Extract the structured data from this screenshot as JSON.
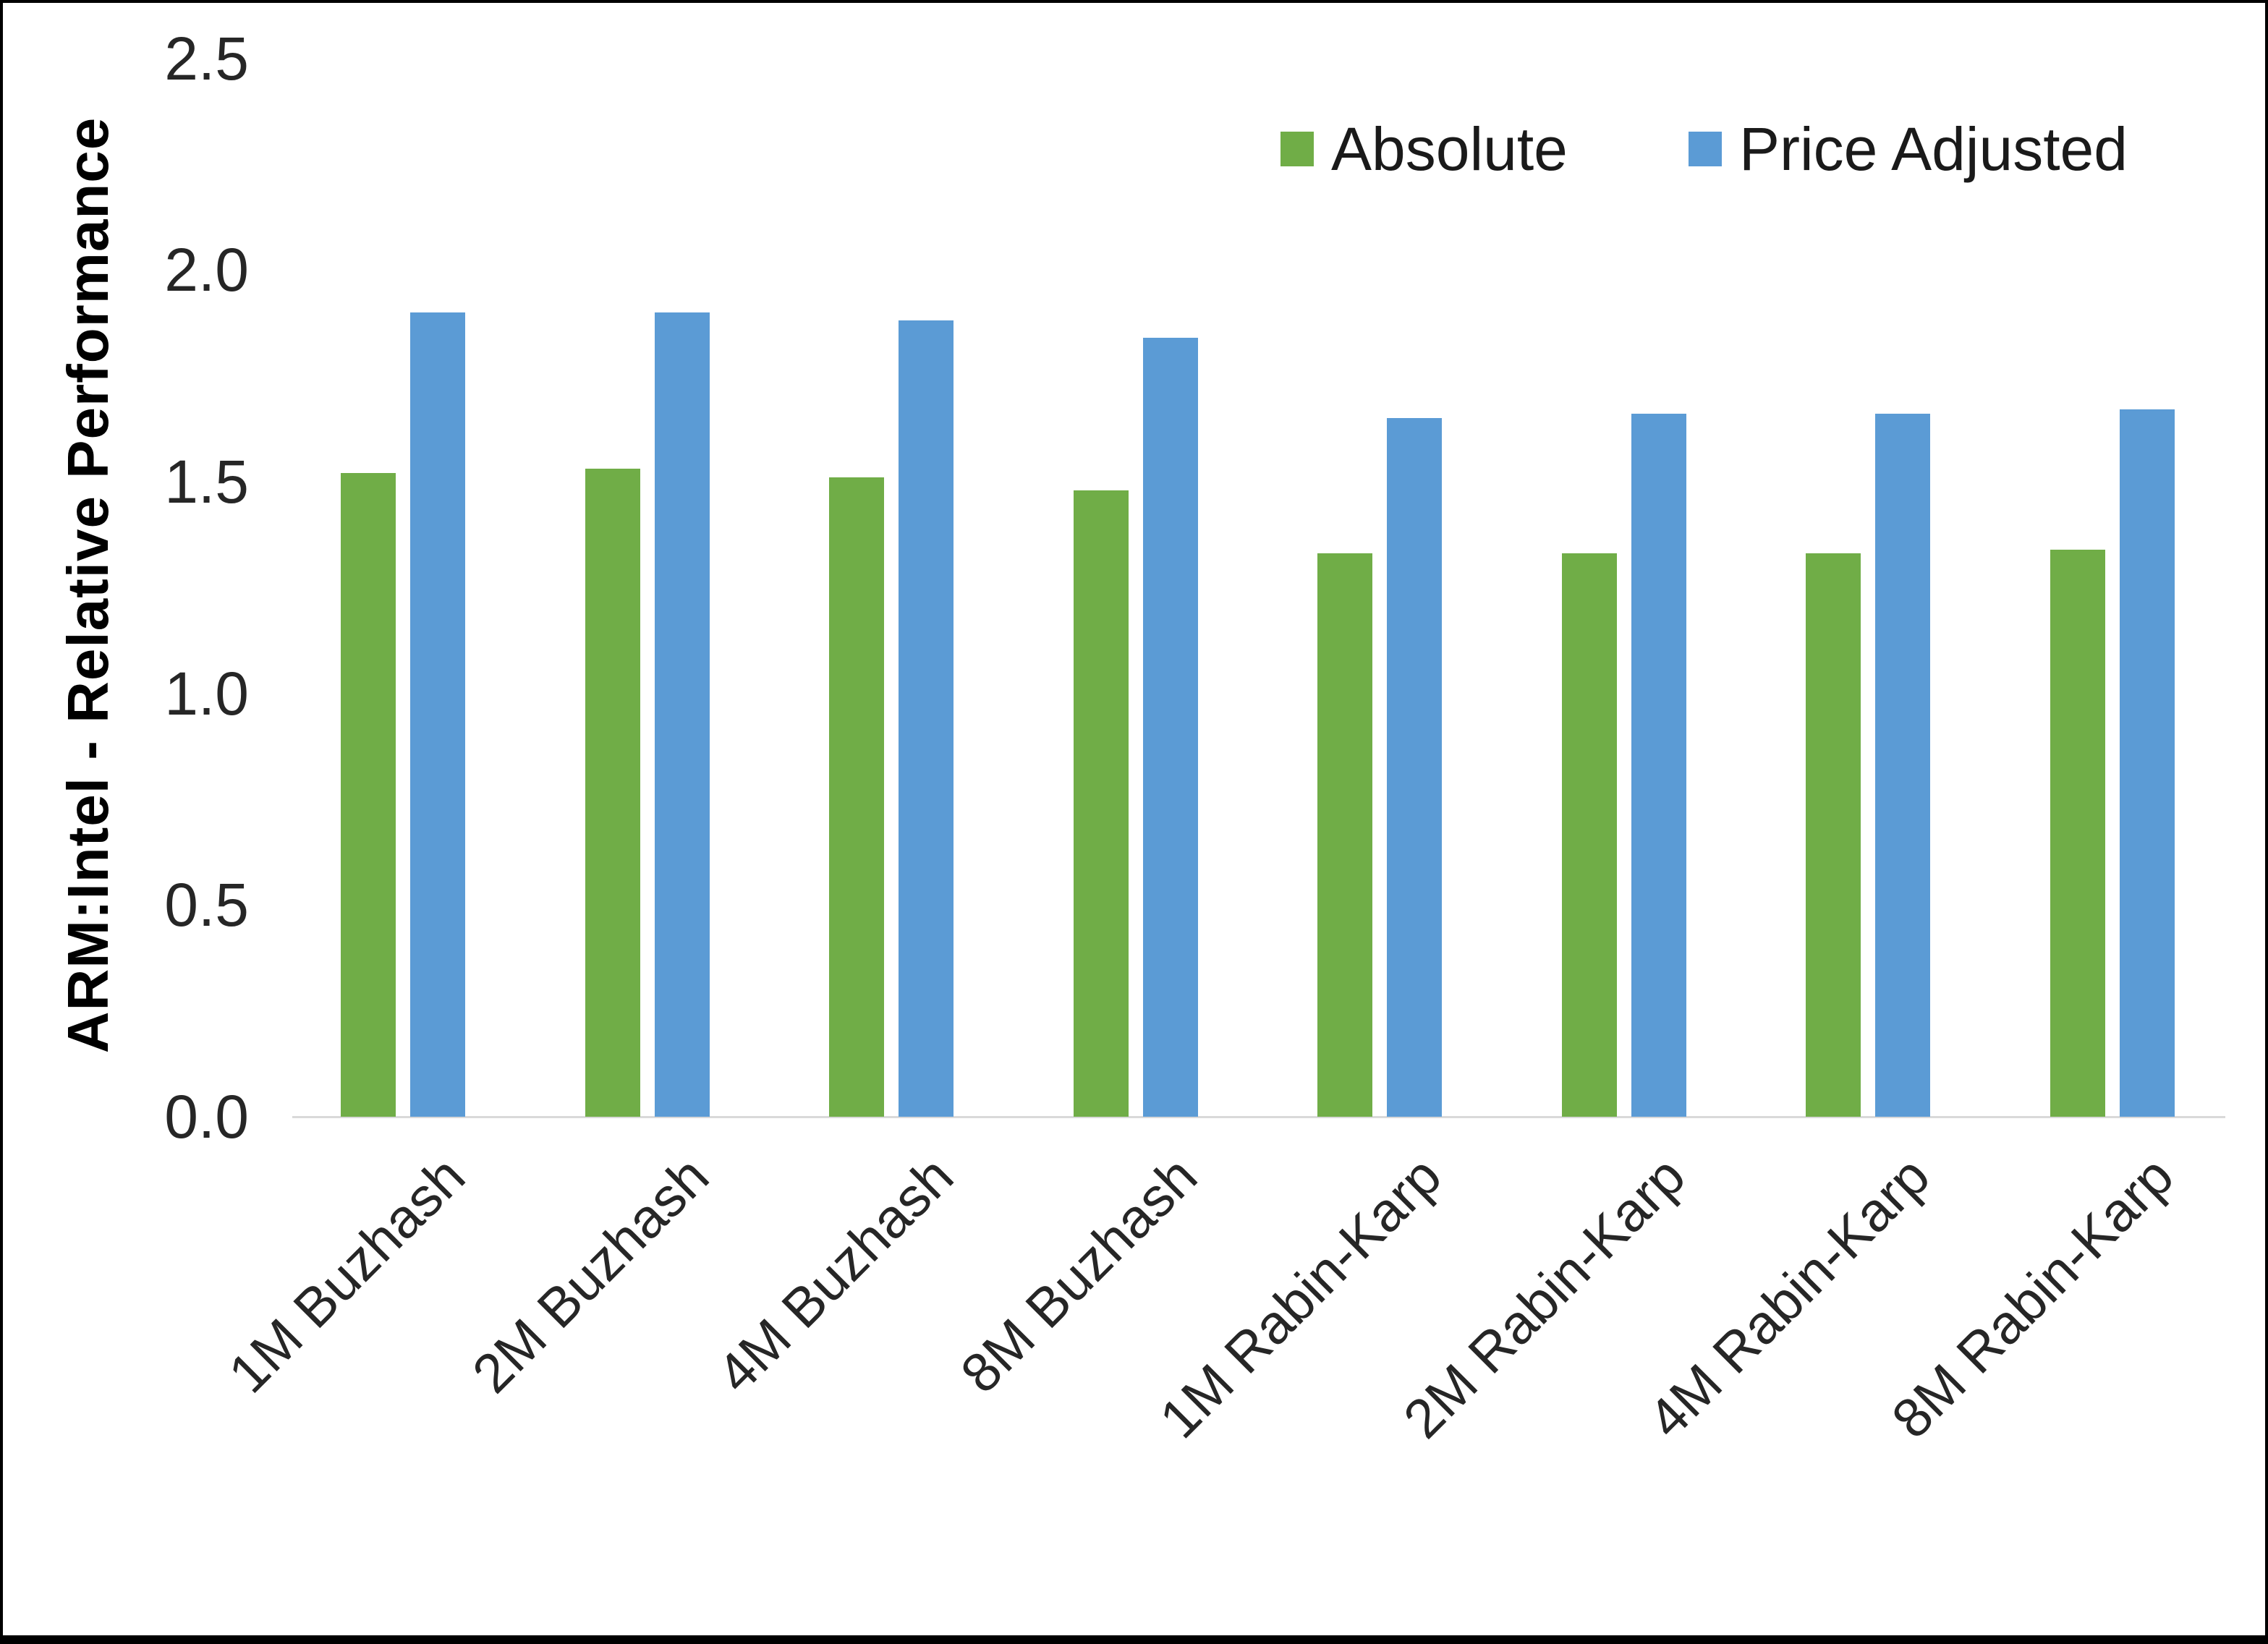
{
  "chart_data": {
    "type": "bar",
    "title": "",
    "xlabel": "",
    "ylabel": "ARM:Intel - Relative Performance",
    "ylim": [
      0,
      2.5
    ],
    "yticks": [
      "0.0",
      "0.5",
      "1.0",
      "1.5",
      "2.0",
      "2.5"
    ],
    "grid": false,
    "legend_position": "top-right",
    "categories": [
      "1M Buzhash",
      "2M Buzhash",
      "4M Buzhash",
      "8M Buzhash",
      "1M Rabin-Karp",
      "2M Rabin-Karp",
      "4M Rabin-Karp",
      "8M Rabin-Karp"
    ],
    "series": [
      {
        "name": "Absolute",
        "color": "#70AD47",
        "values": [
          1.52,
          1.53,
          1.51,
          1.48,
          1.33,
          1.33,
          1.33,
          1.34
        ]
      },
      {
        "name": "Price Adjusted",
        "color": "#5B9BD5",
        "values": [
          1.9,
          1.9,
          1.88,
          1.84,
          1.65,
          1.66,
          1.66,
          1.67
        ]
      }
    ]
  },
  "frame": {
    "border_color": "#000000",
    "axis_line_color": "#d9d9d9"
  }
}
